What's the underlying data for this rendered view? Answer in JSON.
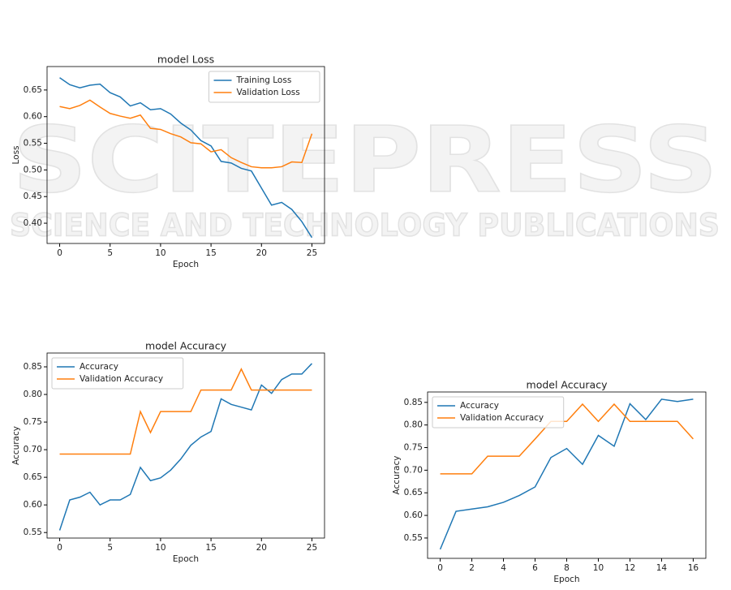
{
  "watermark": {
    "title": "SCITEPRESS",
    "subtitle": "SCIENCE AND TECHNOLOGY PUBLICATIONS"
  },
  "chart_data": [
    {
      "type": "line",
      "title": "model Loss",
      "x_label": "Epoch",
      "y_label": "Loss",
      "legend": "upper right",
      "x": [
        0,
        1,
        2,
        3,
        4,
        5,
        6,
        7,
        8,
        9,
        10,
        11,
        12,
        13,
        14,
        15,
        16,
        17,
        18,
        19,
        20,
        21,
        22,
        23,
        24,
        25
      ],
      "xlim": [
        -1.25,
        26.25
      ],
      "xticks": [
        0,
        5,
        10,
        15,
        20,
        25
      ],
      "ylim": [
        0.362,
        0.694
      ],
      "yticks": [
        {
          "value": 0.4,
          "label": "0.40"
        },
        0.45,
        {
          "value": 0.5,
          "label": "0.50"
        },
        0.55,
        {
          "value": 0.6,
          "label": "0.60"
        },
        0.65
      ],
      "series": [
        {
          "name": "Training Loss",
          "color": "#1f77b4",
          "values": [
            0.673,
            0.66,
            0.654,
            0.659,
            0.661,
            0.645,
            0.637,
            0.62,
            0.626,
            0.613,
            0.615,
            0.605,
            0.588,
            0.575,
            0.555,
            0.545,
            0.516,
            0.513,
            0.503,
            0.498,
            0.466,
            0.434,
            0.439,
            0.426,
            0.403,
            0.373
          ]
        },
        {
          "name": "Validation Loss",
          "color": "#ff7f0e",
          "values": [
            0.619,
            0.615,
            0.621,
            0.631,
            0.618,
            0.606,
            0.601,
            0.597,
            0.603,
            0.578,
            0.576,
            0.568,
            0.562,
            0.551,
            0.549,
            0.534,
            0.538,
            0.523,
            0.514,
            0.506,
            0.504,
            0.504,
            0.506,
            0.515,
            0.514,
            0.568
          ]
        }
      ]
    },
    {
      "type": "line",
      "title": "model Accuracy",
      "x_label": "Epoch",
      "y_label": "Accuracy",
      "legend": "upper left",
      "x": [
        0,
        1,
        2,
        3,
        4,
        5,
        6,
        7,
        8,
        9,
        10,
        11,
        12,
        13,
        14,
        15,
        16,
        17,
        18,
        19,
        20,
        21,
        22,
        23,
        24,
        25
      ],
      "xlim": [
        -1.25,
        26.25
      ],
      "xticks": [
        0,
        5,
        10,
        15,
        20,
        25
      ],
      "ylim": [
        0.54,
        0.875
      ],
      "yticks": [
        0.55,
        {
          "value": 0.6,
          "label": "0.60"
        },
        0.65,
        {
          "value": 0.7,
          "label": "0.70"
        },
        0.75,
        {
          "value": 0.8,
          "label": "0.80"
        },
        0.85
      ],
      "series": [
        {
          "name": "Accuracy",
          "color": "#1f77b4",
          "values": [
            0.554,
            0.609,
            0.614,
            0.623,
            0.6,
            0.609,
            0.609,
            0.619,
            0.668,
            0.644,
            0.649,
            0.663,
            0.683,
            0.708,
            0.723,
            0.733,
            0.792,
            0.782,
            0.777,
            0.772,
            0.817,
            0.802,
            0.827,
            0.837,
            0.837,
            0.856
          ]
        },
        {
          "name": "Validation Accuracy",
          "color": "#ff7f0e",
          "values": [
            0.692,
            0.692,
            0.692,
            0.692,
            0.692,
            0.692,
            0.692,
            0.692,
            0.769,
            0.731,
            0.769,
            0.769,
            0.769,
            0.769,
            0.808,
            0.808,
            0.808,
            0.808,
            0.846,
            0.808,
            0.808,
            0.808,
            0.808,
            0.808,
            0.808,
            0.808
          ]
        }
      ]
    },
    {
      "type": "line",
      "title": "model Accuracy",
      "x_label": "Epoch",
      "y_label": "Accuracy",
      "legend": "upper left",
      "x": [
        0,
        1,
        2,
        3,
        4,
        5,
        6,
        7,
        8,
        9,
        10,
        11,
        12,
        13,
        14,
        15,
        16
      ],
      "xlim": [
        -0.8,
        16.8
      ],
      "xticks": [
        0,
        2,
        4,
        6,
        8,
        10,
        12,
        14,
        16
      ],
      "ylim": [
        0.505,
        0.873
      ],
      "yticks": [
        0.55,
        {
          "value": 0.6,
          "label": "0.60"
        },
        0.65,
        {
          "value": 0.7,
          "label": "0.70"
        },
        0.75,
        {
          "value": 0.8,
          "label": "0.80"
        },
        0.85
      ],
      "series": [
        {
          "name": "Accuracy",
          "color": "#1f77b4",
          "values": [
            0.525,
            0.609,
            0.614,
            0.619,
            0.629,
            0.644,
            0.663,
            0.728,
            0.748,
            0.713,
            0.777,
            0.753,
            0.847,
            0.812,
            0.857,
            0.852,
            0.857
          ]
        },
        {
          "name": "Validation Accuracy",
          "color": "#ff7f0e",
          "values": [
            0.692,
            0.692,
            0.692,
            0.731,
            0.731,
            0.731,
            0.769,
            0.808,
            0.808,
            0.846,
            0.808,
            0.846,
            0.808,
            0.808,
            0.808,
            0.808,
            0.769
          ]
        }
      ]
    }
  ]
}
